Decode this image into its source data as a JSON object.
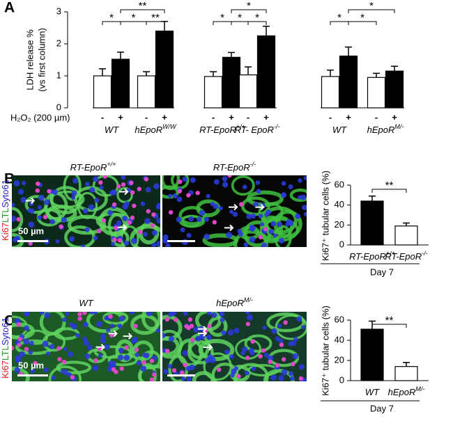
{
  "panel_labels": [
    "A",
    "B",
    "C"
  ],
  "stain_labels": [
    "Ki67",
    "LTL",
    "Syto61"
  ],
  "scale_bar_label": "50 µm",
  "images": [
    {
      "title": "RT-EpoR",
      "sup": "+/+"
    },
    {
      "title": "RT-EpoR",
      "sup": "-/-"
    },
    {
      "title": "WT"
    },
    {
      "title": "hEpoR",
      "sup": "M/-"
    }
  ],
  "chart_data": [
    {
      "type": "bar",
      "y_label": [
        "LDH release %",
        "(vs first column)"
      ],
      "x_label": "H₂O₂ (200 µm)",
      "categories": [
        "-",
        "+",
        "-",
        "+",
        "-",
        "+",
        "-",
        "+",
        "-",
        "+",
        "-",
        "+"
      ],
      "values": [
        1.0,
        1.52,
        1.0,
        2.4,
        0.98,
        1.58,
        1.03,
        2.25,
        0.98,
        1.62,
        0.95,
        1.15
      ],
      "errors": [
        0.22,
        0.22,
        0.13,
        0.3,
        0.15,
        0.15,
        0.25,
        0.3,
        0.2,
        0.28,
        0.13,
        0.15
      ],
      "colors": [
        "#ffffff",
        "#000000",
        "#ffffff",
        "#000000",
        "#ffffff",
        "#000000",
        "#ffffff",
        "#000000",
        "#ffffff",
        "#000000",
        "#ffffff",
        "#000000"
      ],
      "groups": [
        {
          "label": "WT"
        },
        {
          "label": "hEpoR",
          "sup": "W/W"
        },
        {
          "label": "RT-EpoR",
          "sup": "+/+"
        },
        {
          "label": "RT- EpoR",
          "sup": "-/-"
        },
        {
          "label": "WT"
        },
        {
          "label": "hEpoR",
          "sup": "M/-"
        }
      ],
      "ylim": [
        0,
        3
      ],
      "yticks": [
        0,
        1,
        2,
        3
      ],
      "significance": [
        {
          "from": 0,
          "to": 1,
          "label": "*"
        },
        {
          "from": 1,
          "to": 2,
          "label": "*"
        },
        {
          "from": 2,
          "to": 3,
          "label": "**"
        },
        {
          "from": 1,
          "to": 3,
          "label": "**"
        },
        {
          "from": 4,
          "to": 5,
          "label": "*"
        },
        {
          "from": 5,
          "to": 6,
          "label": "*"
        },
        {
          "from": 6,
          "to": 7,
          "label": "*"
        },
        {
          "from": 5,
          "to": 7,
          "label": "*"
        },
        {
          "from": 8,
          "to": 9,
          "label": "*"
        },
        {
          "from": 9,
          "to": 10,
          "label": "*"
        },
        {
          "from": 9,
          "to": 11,
          "label": "*"
        }
      ]
    },
    {
      "type": "bar",
      "y_label": [
        "Ki67⁺ tubular cells (%)"
      ],
      "x_label": "Day 7",
      "categories": [
        "RT-EpoR",
        "RT-EpoR"
      ],
      "category_superscripts": [
        "+/+",
        "-/-"
      ],
      "values": [
        44,
        19
      ],
      "errors": [
        5,
        3
      ],
      "colors": [
        "#000000",
        "#ffffff"
      ],
      "ylim": [
        0,
        60
      ],
      "yticks": [
        0,
        20,
        40,
        60
      ],
      "significance": [
        {
          "from": 0,
          "to": 1,
          "label": "**"
        }
      ]
    },
    {
      "type": "bar",
      "y_label": [
        "Ki67⁺ tubular cells (%)"
      ],
      "x_label": "Day 7",
      "categories": [
        "WT",
        "hEpoR"
      ],
      "category_superscripts": [
        "",
        "M/-"
      ],
      "values": [
        51,
        14
      ],
      "errors": [
        8,
        4
      ],
      "colors": [
        "#000000",
        "#ffffff"
      ],
      "ylim": [
        0,
        60
      ],
      "yticks": [
        0,
        20,
        40,
        60
      ],
      "significance": [
        {
          "from": 0,
          "to": 1,
          "label": "**"
        }
      ]
    }
  ]
}
